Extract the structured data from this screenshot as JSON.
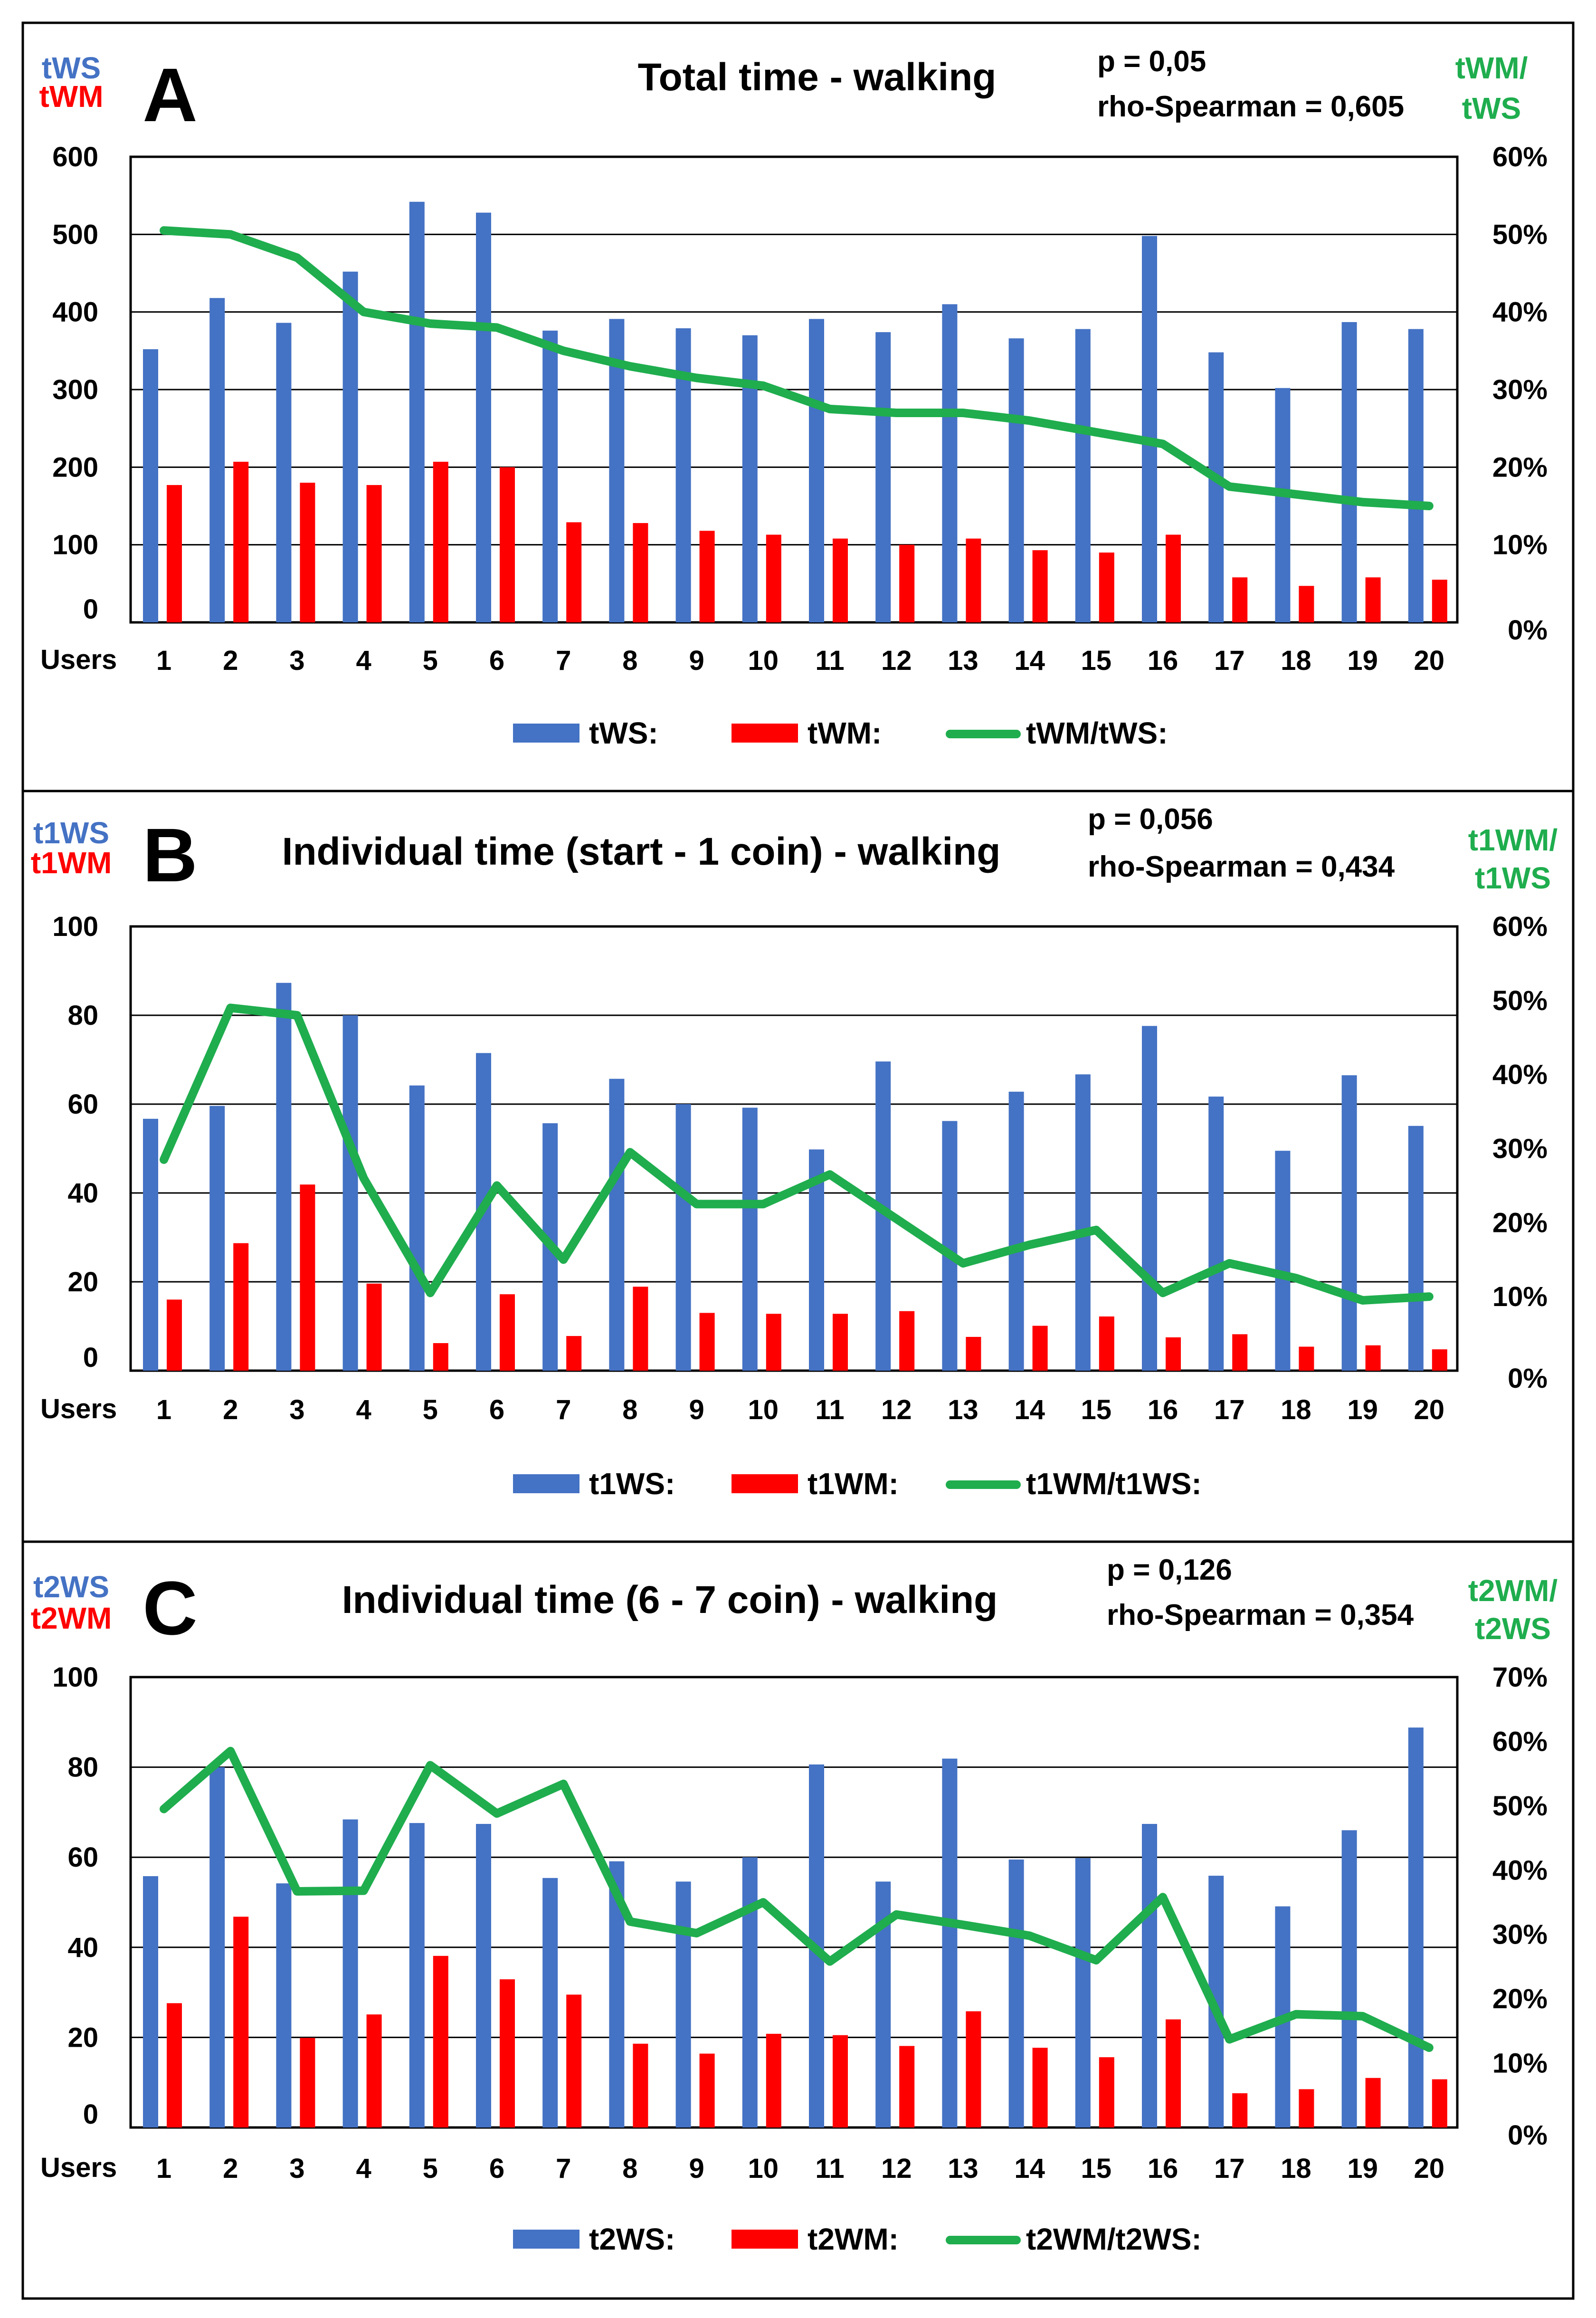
{
  "chart_data": [
    {
      "panel_letter": "A",
      "type": "bar",
      "title": "Total time - walking",
      "stats": {
        "p": "p = 0,05",
        "rho": "rho-Spearman = 0,605"
      },
      "ylabel_left": [
        "tWS",
        "tWM"
      ],
      "ylabel_right": [
        "tWM/",
        "tWS"
      ],
      "x_label": "Users",
      "categories": [
        "1",
        "2",
        "3",
        "4",
        "5",
        "6",
        "7",
        "8",
        "9",
        "10",
        "11",
        "12",
        "13",
        "14",
        "15",
        "16",
        "17",
        "18",
        "19",
        "20"
      ],
      "ylim": [
        0,
        600
      ],
      "y_ticks": [
        "0",
        "100",
        "200",
        "300",
        "400",
        "500",
        "600"
      ],
      "y2lim": [
        0,
        60
      ],
      "y2_ticks": [
        "0%",
        "10%",
        "20%",
        "30%",
        "40%",
        "50%",
        "60%"
      ],
      "grid": true,
      "legend_position": "bottom",
      "series": [
        {
          "name": "tWS:",
          "kind": "bar",
          "color": "#4472C4",
          "values": [
            352,
            418,
            386,
            452,
            542,
            528,
            376,
            391,
            379,
            370,
            391,
            374,
            410,
            366,
            378,
            498,
            348,
            302,
            387,
            378
          ]
        },
        {
          "name": "tWM:",
          "kind": "bar",
          "color": "#FF0000",
          "values": [
            177,
            207,
            180,
            177,
            207,
            200,
            129,
            128,
            118,
            113,
            108,
            100,
            108,
            93,
            90,
            113,
            58,
            47,
            58,
            55
          ]
        },
        {
          "name": "tWM/tWS:",
          "kind": "line",
          "axis": "right",
          "color": "#1FAD4E",
          "values": [
            50.5,
            50.0,
            47.0,
            40.0,
            38.5,
            38.0,
            35.0,
            33.0,
            31.5,
            30.5,
            27.5,
            27.0,
            27.0,
            26.0,
            24.5,
            23.0,
            17.5,
            16.5,
            15.5,
            15.0
          ]
        }
      ]
    },
    {
      "panel_letter": "B",
      "type": "bar",
      "title": "Individual time (start - 1 coin) - walking",
      "stats": {
        "p": "p = 0,056",
        "rho": "rho-Spearman = 0,434"
      },
      "ylabel_left": [
        "t1WS",
        "t1WM"
      ],
      "ylabel_right": [
        "t1WM/",
        "t1WS"
      ],
      "x_label": "Users",
      "categories": [
        "1",
        "2",
        "3",
        "4",
        "5",
        "6",
        "7",
        "8",
        "9",
        "10",
        "11",
        "12",
        "13",
        "14",
        "15",
        "16",
        "17",
        "18",
        "19",
        "20"
      ],
      "ylim": [
        0,
        100
      ],
      "y_ticks": [
        "0",
        "20",
        "40",
        "60",
        "80",
        "100"
      ],
      "y2lim": [
        0,
        60
      ],
      "y2_ticks": [
        "0%",
        "10%",
        "20%",
        "30%",
        "40%",
        "50%",
        "60%"
      ],
      "grid": true,
      "legend_position": "bottom",
      "series": [
        {
          "name": "t1WS:",
          "kind": "bar",
          "color": "#4472C4",
          "values": [
            56.7,
            59.6,
            87.3,
            80.0,
            64.2,
            71.5,
            55.7,
            65.7,
            60.0,
            59.2,
            49.8,
            69.6,
            56.2,
            62.8,
            66.7,
            77.6,
            61.7,
            49.5,
            66.5,
            55.1
          ]
        },
        {
          "name": "t1WM:",
          "kind": "bar",
          "color": "#FF0000",
          "values": [
            16.0,
            28.7,
            41.9,
            19.6,
            6.2,
            17.2,
            7.8,
            18.9,
            13.0,
            12.8,
            12.8,
            13.4,
            7.6,
            10.1,
            12.2,
            7.5,
            8.2,
            5.4,
            5.7,
            4.8
          ]
        },
        {
          "name": "t1WM/t1WS:",
          "kind": "line",
          "axis": "right",
          "color": "#1FAD4E",
          "values": [
            28.5,
            49.0,
            48.0,
            26.0,
            10.5,
            25.0,
            15.0,
            29.5,
            22.5,
            22.5,
            26.5,
            20.5,
            14.5,
            17.0,
            19.0,
            10.5,
            14.5,
            12.5,
            9.5,
            10.0
          ]
        }
      ]
    },
    {
      "panel_letter": "C",
      "type": "bar",
      "title": "Individual time (6 - 7 coin) - walking",
      "stats": {
        "p": "p = 0,126",
        "rho": "rho-Spearman = 0,354"
      },
      "ylabel_left": [
        "t2WS",
        "t2WM"
      ],
      "ylabel_right": [
        "t2WM/",
        "t2WS"
      ],
      "x_label": "Users",
      "categories": [
        "1",
        "2",
        "3",
        "4",
        "5",
        "6",
        "7",
        "8",
        "9",
        "10",
        "11",
        "12",
        "13",
        "14",
        "15",
        "16",
        "17",
        "18",
        "19",
        "20"
      ],
      "ylim": [
        0,
        100
      ],
      "y_ticks": [
        "0",
        "20",
        "40",
        "60",
        "80",
        "100"
      ],
      "y2lim": [
        0,
        70
      ],
      "y2_ticks": [
        "0%",
        "10%",
        "20%",
        "30%",
        "40%",
        "50%",
        "60%",
        "70%"
      ],
      "grid": true,
      "legend_position": "bottom",
      "series": [
        {
          "name": "t2WS:",
          "kind": "bar",
          "color": "#4472C4",
          "values": [
            55.8,
            80.0,
            54.2,
            68.4,
            67.6,
            67.4,
            55.4,
            59.1,
            54.6,
            60.0,
            80.6,
            54.6,
            81.9,
            59.5,
            59.8,
            67.4,
            55.9,
            49.1,
            66.0,
            88.8
          ]
        },
        {
          "name": "t2WM:",
          "kind": "bar",
          "color": "#FF0000",
          "values": [
            27.6,
            46.8,
            19.9,
            25.1,
            38.1,
            32.9,
            29.5,
            18.6,
            16.4,
            20.8,
            20.5,
            18.1,
            25.8,
            17.7,
            15.6,
            24.0,
            7.6,
            8.5,
            11.0,
            10.7
          ]
        },
        {
          "name": "t2WM/t2WS:",
          "kind": "line",
          "axis": "right",
          "color": "#1FAD4E",
          "values": [
            49.5,
            58.5,
            36.7,
            36.8,
            56.3,
            48.8,
            53.4,
            32.0,
            30.2,
            35.0,
            25.8,
            33.1,
            31.5,
            29.8,
            26.0,
            35.8,
            13.7,
            17.6,
            17.3,
            12.4
          ]
        }
      ]
    }
  ]
}
